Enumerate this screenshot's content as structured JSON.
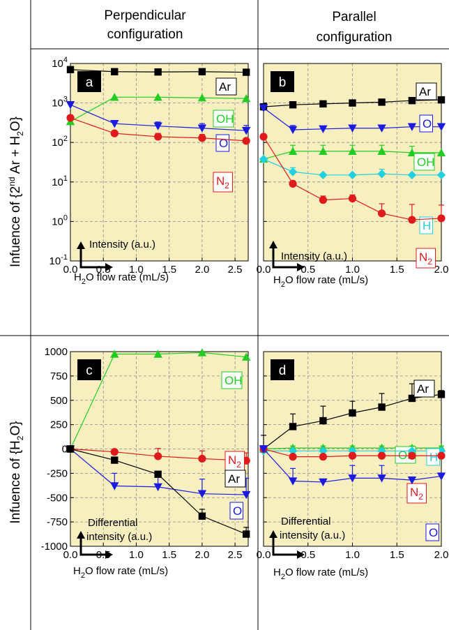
{
  "headers": {
    "col1": [
      "Perpendicular",
      "configuration"
    ],
    "col2": [
      "Parallel",
      "configuration"
    ],
    "row1": [
      "Infuence of {2",
      "nd",
      " Ar + H",
      "2",
      "O}"
    ],
    "row2": [
      "Infuence of {H",
      "2",
      "O}"
    ]
  },
  "colors": {
    "panel_bg": "#f8efc0",
    "Ar": "#000000",
    "OH": "#22cc22",
    "O": "#1a1ae0",
    "N2": "#e01a1a",
    "H": "#22d0e0"
  },
  "chart_data": [
    {
      "type": "line",
      "panel_label": "a",
      "y_scale": "log",
      "x_ticks": [
        "0.0",
        "0.5",
        "1.0",
        "1.5",
        "2.0",
        "2.5"
      ],
      "xlim": [
        0,
        2.7
      ],
      "ylim": [
        0.1,
        10000
      ],
      "y_ticks": [
        {
          "v": 10000,
          "b": "10",
          "e": "4"
        },
        {
          "v": 1000,
          "b": "10",
          "e": "3"
        },
        {
          "v": 100,
          "b": "10",
          "e": "2"
        },
        {
          "v": 10,
          "b": "10",
          "e": "1"
        },
        {
          "v": 1,
          "b": "10",
          "e": "0"
        },
        {
          "v": 0.1,
          "b": "10",
          "e": "-1"
        }
      ],
      "annotations": {
        "y_label": "Intensity (a.u.)",
        "x_label": [
          "H",
          "2",
          "O flow rate (mL/s)"
        ]
      },
      "series": [
        {
          "name": "Ar",
          "marker": "square",
          "x": [
            0,
            0.67,
            1.33,
            2.0,
            2.67
          ],
          "y": [
            7000,
            6200,
            6100,
            6200,
            6000
          ],
          "err": [
            0,
            0,
            0,
            0,
            0
          ],
          "label": [
            "Ar",
            ""
          ]
        },
        {
          "name": "OH",
          "marker": "triangle-up",
          "x": [
            0,
            0.67,
            1.33,
            2.0,
            2.67
          ],
          "y": [
            340,
            1400,
            1400,
            1350,
            1300
          ],
          "err": [
            0,
            0,
            0,
            0,
            0
          ],
          "label": [
            "OH",
            ""
          ]
        },
        {
          "name": "O",
          "marker": "triangle-down",
          "x": [
            0,
            0.67,
            1.33,
            2.0,
            2.67
          ],
          "y": [
            900,
            300,
            260,
            230,
            200
          ],
          "err": [
            0,
            0,
            70,
            70,
            70
          ],
          "label": [
            "O",
            ""
          ]
        },
        {
          "name": "N2",
          "marker": "circle",
          "x": [
            0,
            0.67,
            1.33,
            2.0,
            2.67
          ],
          "y": [
            420,
            170,
            140,
            130,
            110
          ],
          "err": [
            0,
            0,
            30,
            30,
            0
          ],
          "label": [
            "N",
            "2"
          ]
        }
      ]
    },
    {
      "type": "line",
      "panel_label": "b",
      "y_scale": "log",
      "x_ticks": [
        "0.0",
        "0.5",
        "1.0",
        "1.5",
        "2.0"
      ],
      "xlim": [
        0,
        2.0
      ],
      "ylim": [
        0.1,
        10000
      ],
      "y_ticks": [],
      "annotations": {
        "y_label": "Intensity (a.u.)",
        "x_label": [
          "H",
          "2",
          "O flow rate (mL/s)"
        ]
      },
      "series": [
        {
          "name": "Ar",
          "marker": "square",
          "x": [
            0,
            0.33,
            0.67,
            1.0,
            1.33,
            1.67,
            2.0
          ],
          "y": [
            800,
            900,
            950,
            1000,
            1050,
            1150,
            1200
          ],
          "err": [
            0,
            0,
            0,
            0,
            0,
            0,
            0
          ],
          "label": [
            "Ar",
            ""
          ]
        },
        {
          "name": "O",
          "marker": "triangle-down",
          "x": [
            0,
            0.33,
            0.67,
            1.0,
            1.33,
            1.67,
            2.0
          ],
          "y": [
            750,
            210,
            220,
            230,
            230,
            250,
            250
          ],
          "err": [
            0,
            60,
            0,
            0,
            0,
            0,
            0
          ],
          "label": [
            "O",
            ""
          ]
        },
        {
          "name": "OH",
          "marker": "triangle-up",
          "x": [
            0,
            0.33,
            0.67,
            1.0,
            1.33,
            1.67,
            2.0
          ],
          "y": [
            38,
            60,
            60,
            60,
            60,
            55,
            55
          ],
          "err": [
            0,
            25,
            25,
            25,
            25,
            25,
            0
          ],
          "label": [
            "OH",
            ""
          ]
        },
        {
          "name": "H",
          "marker": "diamond",
          "x": [
            0,
            0.33,
            0.67,
            1.0,
            1.33,
            1.67,
            2.0
          ],
          "y": [
            38,
            18,
            15,
            15,
            16,
            15,
            15
          ],
          "err": [
            0,
            5,
            0,
            0,
            5,
            0,
            0
          ],
          "label": [
            "H",
            ""
          ]
        },
        {
          "name": "N2",
          "marker": "circle",
          "x": [
            0,
            0.33,
            0.67,
            1.0,
            1.33,
            1.67,
            2.0
          ],
          "y": [
            140,
            9,
            3.5,
            3.8,
            1.6,
            1.1,
            1.2
          ],
          "err": [
            0,
            0,
            0.9,
            0.9,
            1.2,
            1.6,
            1.4
          ],
          "label": [
            "N",
            "2"
          ]
        }
      ]
    },
    {
      "type": "line",
      "panel_label": "c",
      "y_scale": "linear",
      "x_ticks": [
        "0.0",
        "0.5",
        "1.0",
        "1.5",
        "2.0",
        "2.5"
      ],
      "xlim": [
        0,
        2.7
      ],
      "ylim": [
        -1000,
        1000
      ],
      "y_ticks": [
        {
          "v": 1000,
          "t": "1000"
        },
        {
          "v": 750,
          "t": "750"
        },
        {
          "v": 500,
          "t": "500"
        },
        {
          "v": 250,
          "t": "250"
        },
        {
          "v": 0,
          "t": "0"
        },
        {
          "v": -250,
          "t": "-250"
        },
        {
          "v": -500,
          "t": "-500"
        },
        {
          "v": -750,
          "t": "-750"
        },
        {
          "v": -1000,
          "t": "-1000"
        }
      ],
      "annotations": {
        "y_label": "Differential intensity (a.u.)",
        "x_label": [
          "H",
          "2",
          "O flow rate (mL/s)"
        ]
      },
      "series": [
        {
          "name": "OH",
          "marker": "triangle-up",
          "x": [
            0,
            0.67,
            1.33,
            2.0,
            2.67
          ],
          "y": [
            0,
            975,
            975,
            990,
            945
          ],
          "err": [
            0,
            0,
            0,
            0,
            0
          ],
          "label": [
            "OH",
            ""
          ]
        },
        {
          "name": "N2",
          "marker": "circle",
          "x": [
            0,
            0.67,
            1.33,
            2.0,
            2.67
          ],
          "y": [
            0,
            -30,
            -75,
            -100,
            -120
          ],
          "err": [
            0,
            0,
            80,
            80,
            80
          ],
          "label": [
            "N",
            "2"
          ]
        },
        {
          "name": "O",
          "marker": "triangle-down",
          "x": [
            0,
            0.67,
            1.33,
            2.0,
            2.67
          ],
          "y": [
            0,
            -380,
            -390,
            -460,
            -470
          ],
          "err": [
            0,
            130,
            130,
            150,
            170
          ],
          "label": [
            "O",
            ""
          ]
        },
        {
          "name": "Ar",
          "marker": "square",
          "x": [
            0,
            0.67,
            1.33,
            2.0,
            2.67
          ],
          "y": [
            0,
            -115,
            -260,
            -690,
            -875
          ],
          "err": [
            0,
            0,
            0,
            70,
            70
          ],
          "label": [
            "Ar",
            ""
          ]
        }
      ]
    },
    {
      "type": "line",
      "panel_label": "d",
      "y_scale": "linear",
      "x_ticks": [
        "0.0",
        "0.5",
        "1.0",
        "1.5",
        "2.0"
      ],
      "xlim": [
        0,
        2.0
      ],
      "ylim": [
        -1000,
        1000
      ],
      "y_ticks": [],
      "annotations": {
        "y_label": "Differential intensity (a.u.)",
        "x_label": [
          "H",
          "2",
          "O flow rate (mL/s)"
        ]
      },
      "series": [
        {
          "name": "Ar",
          "marker": "square",
          "x": [
            0,
            0.33,
            0.67,
            1.0,
            1.33,
            1.67,
            2.0
          ],
          "y": [
            0,
            230,
            290,
            370,
            430,
            520,
            560
          ],
          "err": [
            140,
            130,
            150,
            120,
            140,
            150,
            40
          ],
          "label": [
            "Ar",
            ""
          ]
        },
        {
          "name": "OH",
          "marker": "triangle-up",
          "x": [
            0,
            0.33,
            0.67,
            1.0,
            1.33,
            1.67,
            2.0
          ],
          "y": [
            0,
            10,
            10,
            10,
            10,
            10,
            10
          ],
          "err": [
            20,
            20,
            20,
            20,
            20,
            20,
            20
          ],
          "label": [
            "OH",
            ""
          ]
        },
        {
          "name": "H",
          "marker": "diamond",
          "x": [
            0,
            0.33,
            0.67,
            1.0,
            1.33,
            1.67,
            2.0
          ],
          "y": [
            -20,
            -20,
            -20,
            -20,
            -20,
            -20,
            -20
          ],
          "err": [
            0,
            0,
            0,
            0,
            0,
            0,
            0
          ],
          "label": [
            "H",
            ""
          ]
        },
        {
          "name": "N2",
          "marker": "circle",
          "x": [
            0,
            0.33,
            0.67,
            1.0,
            1.33,
            1.67,
            2.0
          ],
          "y": [
            0,
            -80,
            -80,
            -70,
            -70,
            -70,
            -70
          ],
          "err": [
            0,
            0,
            0,
            0,
            0,
            0,
            0
          ],
          "label": [
            "N",
            "2"
          ]
        },
        {
          "name": "O",
          "marker": "triangle-down",
          "x": [
            0,
            0.33,
            0.67,
            1.0,
            1.33,
            1.67,
            2.0
          ],
          "y": [
            0,
            -330,
            -340,
            -300,
            -300,
            -320,
            -280
          ],
          "err": [
            0,
            130,
            0,
            130,
            130,
            0,
            0
          ],
          "label": [
            "O",
            ""
          ]
        }
      ]
    }
  ]
}
